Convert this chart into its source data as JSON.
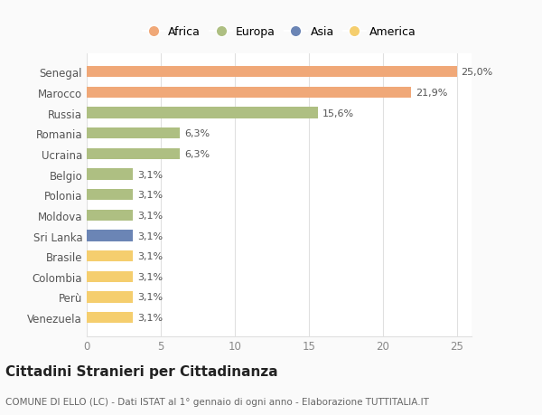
{
  "categories": [
    "Venezuela",
    "Perù",
    "Colombia",
    "Brasile",
    "Sri Lanka",
    "Moldova",
    "Polonia",
    "Belgio",
    "Ucraina",
    "Romania",
    "Russia",
    "Marocco",
    "Senegal"
  ],
  "values": [
    3.1,
    3.1,
    3.1,
    3.1,
    3.1,
    3.1,
    3.1,
    3.1,
    6.3,
    6.3,
    15.6,
    21.9,
    25.0
  ],
  "labels": [
    "3,1%",
    "3,1%",
    "3,1%",
    "3,1%",
    "3,1%",
    "3,1%",
    "3,1%",
    "3,1%",
    "6,3%",
    "6,3%",
    "15,6%",
    "21,9%",
    "25,0%"
  ],
  "colors": [
    "#F5CE6E",
    "#F5CE6E",
    "#F5CE6E",
    "#F5CE6E",
    "#6B85B5",
    "#AEBF82",
    "#AEBF82",
    "#AEBF82",
    "#AEBF82",
    "#AEBF82",
    "#AEBF82",
    "#F0A878",
    "#F0A878"
  ],
  "legend": [
    {
      "label": "Africa",
      "color": "#F0A878"
    },
    {
      "label": "Europa",
      "color": "#AEBF82"
    },
    {
      "label": "Asia",
      "color": "#6B85B5"
    },
    {
      "label": "America",
      "color": "#F5CE6E"
    }
  ],
  "title": "Cittadini Stranieri per Cittadinanza",
  "subtitle": "COMUNE DI ELLO (LC) - Dati ISTAT al 1° gennaio di ogni anno - Elaborazione TUTTITALIA.IT",
  "xlim": [
    0,
    26
  ],
  "xticks": [
    0,
    5,
    10,
    15,
    20,
    25
  ],
  "background_color": "#FAFAFA",
  "plot_bg_color": "#FFFFFF",
  "grid_color": "#E0E0E0",
  "label_fontsize": 8,
  "ytick_fontsize": 8.5,
  "xtick_fontsize": 8.5,
  "title_fontsize": 11,
  "subtitle_fontsize": 7.5,
  "bar_height": 0.55
}
